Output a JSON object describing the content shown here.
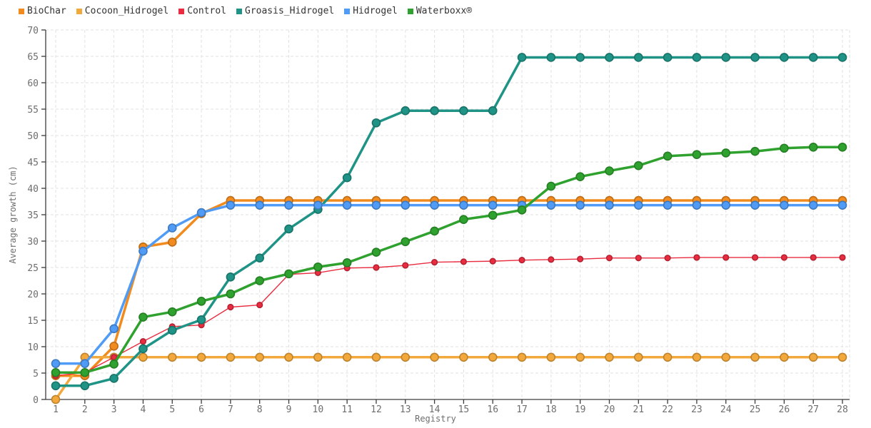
{
  "chart_data": {
    "type": "line",
    "title": "",
    "xlabel": "Registry",
    "ylabel": "Average growth (cm)",
    "x": [
      1,
      2,
      3,
      4,
      5,
      6,
      7,
      8,
      9,
      10,
      11,
      12,
      13,
      14,
      15,
      16,
      17,
      18,
      19,
      20,
      21,
      22,
      23,
      24,
      25,
      26,
      27,
      28
    ],
    "ylim": [
      0,
      70
    ],
    "ytick_step": 5,
    "grid": "dashed",
    "legend_position": "top-left",
    "axis_color": "#3c3c3c",
    "grid_color": "#e2e2e2",
    "tick_label_color": "#6e6e6e",
    "series": [
      {
        "name": "BioChar",
        "color": "#F28B1E",
        "line_width": 3.5,
        "marker_radius": 5.5,
        "values": [
          4.5,
          4.5,
          10.1,
          28.9,
          29.8,
          35.2,
          37.7,
          37.7,
          37.7,
          37.7,
          37.7,
          37.7,
          37.7,
          37.7,
          37.7,
          37.7,
          37.7,
          37.7,
          37.7,
          37.7,
          37.7,
          37.7,
          37.7,
          37.7,
          37.7,
          37.7,
          37.7,
          37.7
        ]
      },
      {
        "name": "Cocoon_Hidrogel",
        "color": "#F3A83B",
        "line_width": 3.5,
        "marker_radius": 5.5,
        "values": [
          0,
          8,
          8,
          8,
          8,
          8,
          8,
          8,
          8,
          8,
          8,
          8,
          8,
          8,
          8,
          8,
          8,
          8,
          8,
          8,
          8,
          8,
          8,
          8,
          8,
          8,
          8,
          8
        ]
      },
      {
        "name": "Control",
        "color": "#E92C40",
        "line_width": 1.4,
        "marker_radius": 3.8,
        "values": [
          4.5,
          5.1,
          8.0,
          11.0,
          13.8,
          14.1,
          17.5,
          17.9,
          23.7,
          24.0,
          24.9,
          25.0,
          25.4,
          26.0,
          26.1,
          26.2,
          26.4,
          26.5,
          26.6,
          26.8,
          26.8,
          26.8,
          26.9,
          26.9,
          26.9,
          26.9,
          26.9,
          26.9
        ]
      },
      {
        "name": "Groasis_Hidrogel",
        "color": "#1F9386",
        "line_width": 3.5,
        "marker_radius": 5.5,
        "values": [
          2.6,
          2.6,
          4.0,
          9.6,
          13.1,
          15.1,
          23.2,
          26.8,
          32.3,
          36.0,
          42.0,
          52.4,
          54.7,
          54.7,
          54.7,
          54.7,
          64.8,
          64.8,
          64.8,
          64.8,
          64.8,
          64.8,
          64.8,
          64.8,
          64.8,
          64.8,
          64.8,
          64.8
        ]
      },
      {
        "name": "Hidrogel",
        "color": "#4F9BF5",
        "line_width": 3.5,
        "marker_radius": 5.5,
        "values": [
          6.8,
          6.8,
          13.4,
          28.1,
          32.5,
          35.4,
          36.8,
          36.8,
          36.8,
          36.8,
          36.8,
          36.8,
          36.8,
          36.8,
          36.8,
          36.8,
          36.8,
          36.8,
          36.8,
          36.8,
          36.8,
          36.8,
          36.8,
          36.8,
          36.8,
          36.8,
          36.8,
          36.8
        ]
      },
      {
        "name": "Waterboxx®",
        "color": "#2FA12E",
        "line_width": 3.5,
        "marker_radius": 5.5,
        "values": [
          5.1,
          5.1,
          6.7,
          15.6,
          16.6,
          18.6,
          20.0,
          22.5,
          23.8,
          25.1,
          25.9,
          27.9,
          29.9,
          31.9,
          34.1,
          34.9,
          35.9,
          40.4,
          42.2,
          43.3,
          44.3,
          46.1,
          46.4,
          46.7,
          47.0,
          47.6,
          47.8,
          47.8
        ]
      }
    ]
  }
}
